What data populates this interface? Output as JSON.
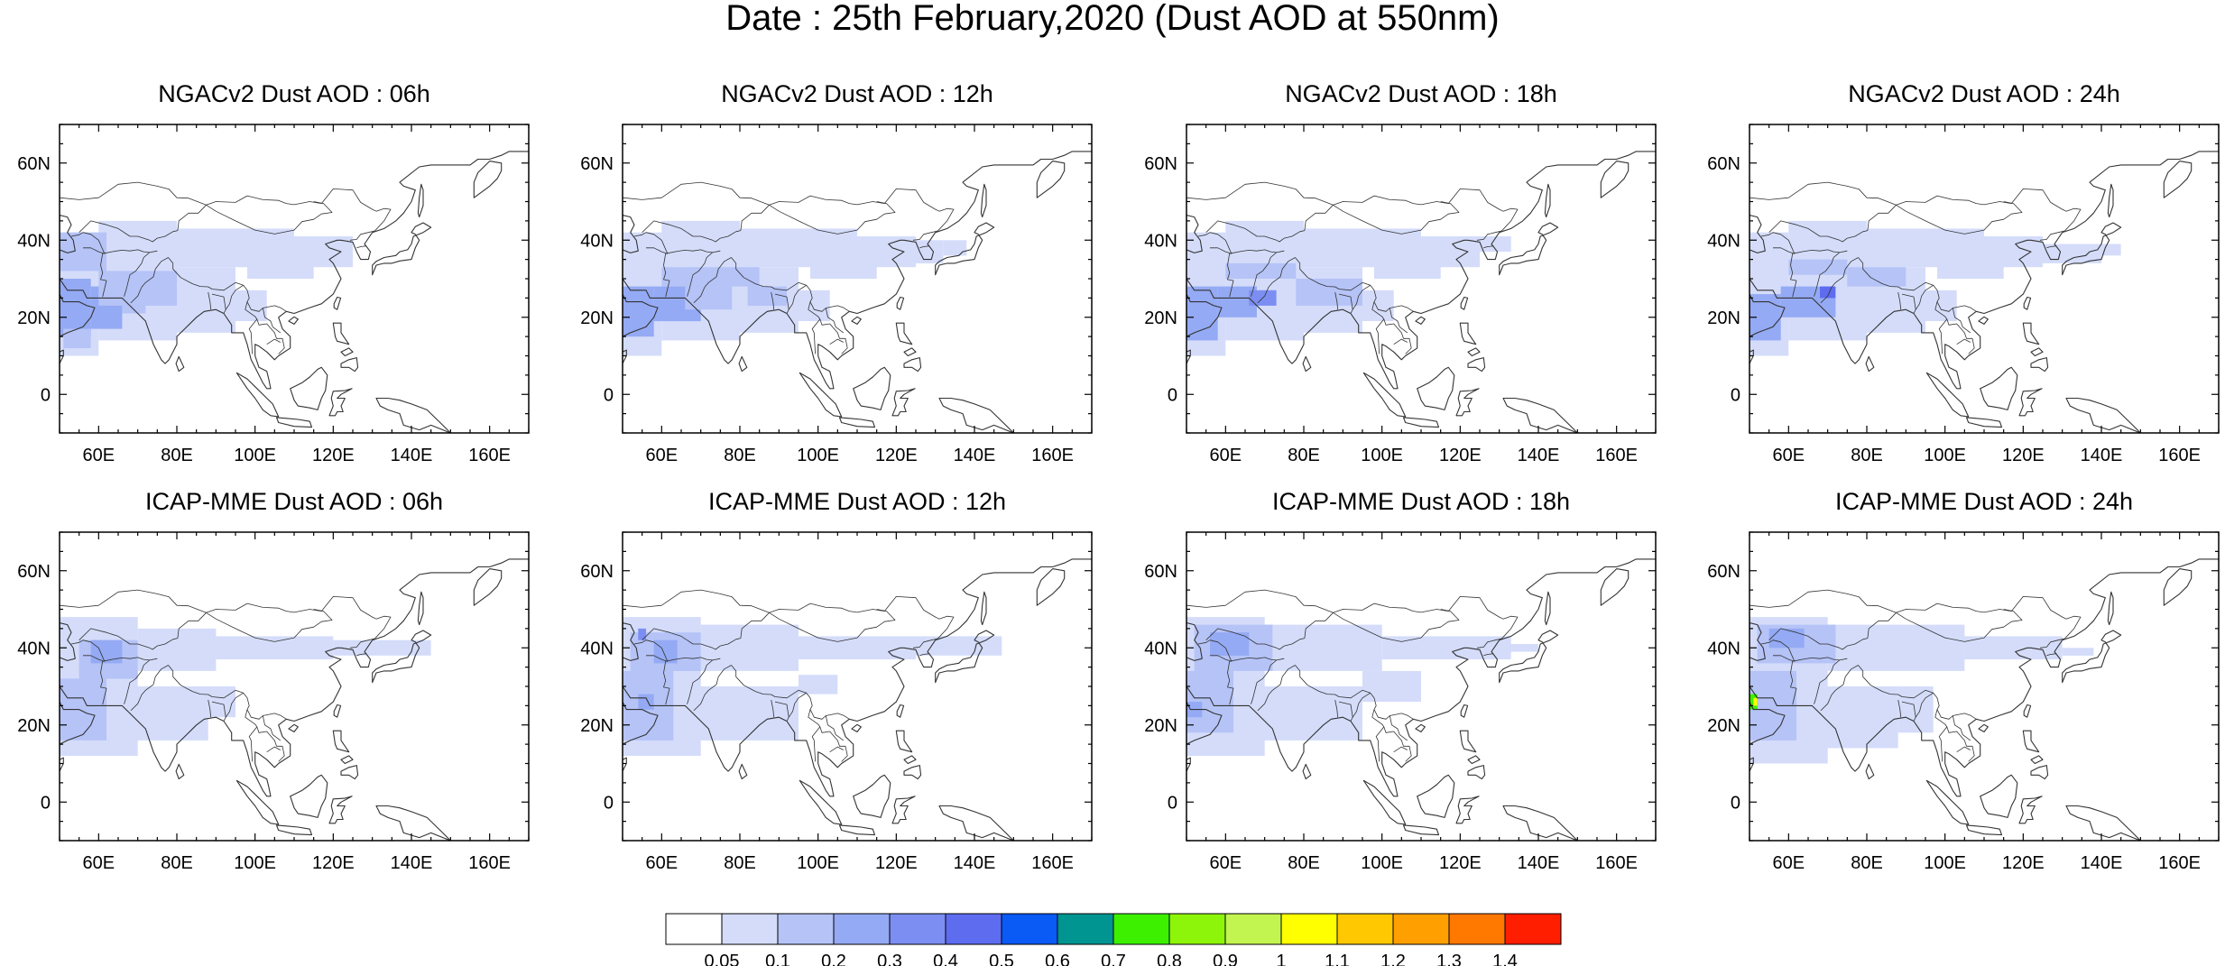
{
  "title": "Date : 25th February,2020 (Dust AOD at 550nm)",
  "axes": {
    "lat_ticks": [
      "60N",
      "40N",
      "20N",
      "0"
    ],
    "lon_ticks": [
      "60E",
      "80E",
      "100E",
      "120E",
      "140E",
      "160E"
    ],
    "lat_range": [
      -10,
      70
    ],
    "lon_range": [
      50,
      170
    ]
  },
  "panels": [
    {
      "title": "NGACv2 Dust AOD : 06h",
      "model": "NGACv2",
      "hour": "06h"
    },
    {
      "title": "NGACv2 Dust AOD : 12h",
      "model": "NGACv2",
      "hour": "12h"
    },
    {
      "title": "NGACv2 Dust AOD : 18h",
      "model": "NGACv2",
      "hour": "18h"
    },
    {
      "title": "NGACv2 Dust AOD : 24h",
      "model": "NGACv2",
      "hour": "24h"
    },
    {
      "title": "ICAP-MME Dust AOD : 06h",
      "model": "ICAP-MME",
      "hour": "06h"
    },
    {
      "title": "ICAP-MME Dust AOD : 12h",
      "model": "ICAP-MME",
      "hour": "12h"
    },
    {
      "title": "ICAP-MME Dust AOD : 18h",
      "model": "ICAP-MME",
      "hour": "18h"
    },
    {
      "title": "ICAP-MME Dust AOD : 24h",
      "model": "ICAP-MME",
      "hour": "24h"
    }
  ],
  "colorbar": {
    "levels": [
      "0.05",
      "0.1",
      "0.2",
      "0.3",
      "0.4",
      "0.5",
      "0.6",
      "0.7",
      "0.8",
      "0.9",
      "1",
      "1.1",
      "1.2",
      "1.3",
      "1.4"
    ],
    "colors": [
      "#ffffff",
      "#d4dcfa",
      "#b5c3f7",
      "#94aaf4",
      "#7c8ef2",
      "#5e6cf0",
      "#0a5af5",
      "#009591",
      "#3cf000",
      "#8cf50a",
      "#c3f550",
      "#ffff00",
      "#ffc800",
      "#ffa000",
      "#ff7800",
      "#ff1e00"
    ]
  }
}
